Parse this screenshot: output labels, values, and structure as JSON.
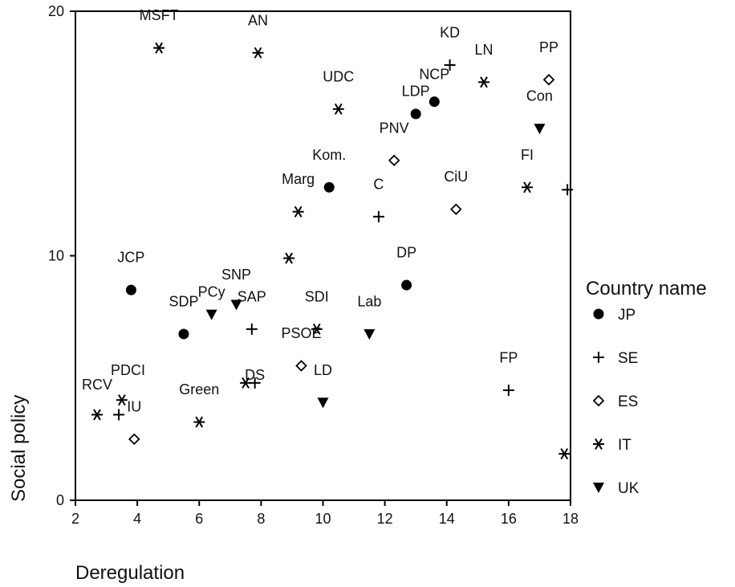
{
  "chart_data": {
    "type": "scatter",
    "xlabel": "Deregulation",
    "ylabel": "Social policy",
    "xlim": [
      2,
      18
    ],
    "ylim": [
      0,
      20
    ],
    "x_ticks": [
      "2",
      "4",
      "6",
      "8",
      "10",
      "12",
      "14",
      "16",
      "18"
    ],
    "y_ticks": [
      "0",
      "10",
      "20"
    ],
    "grid": false,
    "legend": {
      "title": "Country name",
      "placement": "right",
      "entries": [
        {
          "code": "JP",
          "marker": "circle"
        },
        {
          "code": "SE",
          "marker": "plus"
        },
        {
          "code": "ES",
          "marker": "diamond"
        },
        {
          "code": "IT",
          "marker": "asterisk"
        },
        {
          "code": "UK",
          "marker": "triangle-down"
        }
      ]
    },
    "points": [
      {
        "label": "JCP",
        "country": "JP",
        "x": 3.8,
        "y": 8.6,
        "lx": 0,
        "ly": -1.0
      },
      {
        "label": "SDP",
        "country": "JP",
        "x": 5.5,
        "y": 6.8,
        "lx": 0,
        "ly": -1.0
      },
      {
        "label": "Kom.",
        "country": "JP",
        "x": 10.2,
        "y": 12.8,
        "lx": 0,
        "ly": -1.0
      },
      {
        "label": "DP",
        "country": "JP",
        "x": 12.7,
        "y": 8.8,
        "lx": 0,
        "ly": -1.0
      },
      {
        "label": "LDP",
        "country": "JP",
        "x": 13.0,
        "y": 15.8,
        "lx": 0,
        "ly": -0.6
      },
      {
        "label": "NCP",
        "country": "JP",
        "x": 13.6,
        "y": 16.3,
        "lx": 0,
        "ly": -0.8
      },
      {
        "label": "RCV",
        "country": "SE",
        "x": 3.4,
        "y": 3.5,
        "lx": -0.7,
        "ly": -0.9
      },
      {
        "label": "SAP",
        "country": "SE",
        "x": 7.7,
        "y": 7.0,
        "lx": 0,
        "ly": -1.0
      },
      {
        "label": "C",
        "country": "SE",
        "x": 11.8,
        "y": 11.6,
        "lx": 0,
        "ly": -1.0
      },
      {
        "label": "KD",
        "country": "SE",
        "x": 14.1,
        "y": 17.8,
        "lx": 0,
        "ly": -1.0
      },
      {
        "label": "FP",
        "country": "SE",
        "x": 16.0,
        "y": 4.5,
        "lx": 0,
        "ly": -1.0
      },
      {
        "label": "",
        "country": "SE",
        "x": 17.9,
        "y": 12.7,
        "lx": 0,
        "ly": 0
      },
      {
        "label": "DS",
        "country": "SE",
        "x": 7.8,
        "y": 4.8,
        "lx": 0,
        "ly": 0
      },
      {
        "label": "IU",
        "country": "ES",
        "x": 3.9,
        "y": 2.5,
        "lx": 0,
        "ly": -1.0
      },
      {
        "label": "PSOE",
        "country": "ES",
        "x": 9.3,
        "y": 5.5,
        "lx": 0,
        "ly": -1.0
      },
      {
        "label": "PNV",
        "country": "ES",
        "x": 12.3,
        "y": 13.9,
        "lx": 0,
        "ly": -1.0
      },
      {
        "label": "CiU",
        "country": "ES",
        "x": 14.3,
        "y": 11.9,
        "lx": 0,
        "ly": -1.0
      },
      {
        "label": "PP",
        "country": "ES",
        "x": 17.3,
        "y": 17.2,
        "lx": 0,
        "ly": -1.0
      },
      {
        "label": "MSFT",
        "country": "IT",
        "x": 4.7,
        "y": 18.5,
        "lx": 0,
        "ly": -1.0
      },
      {
        "label": "AN",
        "country": "IT",
        "x": 7.9,
        "y": 18.3,
        "lx": 0,
        "ly": -1.0
      },
      {
        "label": "UDC",
        "country": "IT",
        "x": 10.5,
        "y": 16.0,
        "lx": 0,
        "ly": -1.0
      },
      {
        "label": "LN",
        "country": "IT",
        "x": 15.2,
        "y": 17.1,
        "lx": 0,
        "ly": -1.0
      },
      {
        "label": "FI",
        "country": "IT",
        "x": 16.6,
        "y": 12.8,
        "lx": 0,
        "ly": -1.0
      },
      {
        "label": "Marg",
        "country": "IT",
        "x": 9.2,
        "y": 11.8,
        "lx": 0,
        "ly": -1.0
      },
      {
        "label": "",
        "country": "IT",
        "x": 8.9,
        "y": 9.9,
        "lx": 0,
        "ly": 0
      },
      {
        "label": "SDI",
        "country": "IT",
        "x": 9.8,
        "y": 7.0,
        "lx": 0,
        "ly": -1.0
      },
      {
        "label": "",
        "country": "IT",
        "x": 7.5,
        "y": 4.8,
        "lx": 0,
        "ly": 0
      },
      {
        "label": "PDCI",
        "country": "IT",
        "x": 3.5,
        "y": 4.1,
        "lx": 0.2,
        "ly": -0.9
      },
      {
        "label": "",
        "country": "IT",
        "x": 2.7,
        "y": 3.5,
        "lx": 0,
        "ly": 0
      },
      {
        "label": "Green",
        "country": "IT",
        "x": 6.0,
        "y": 3.2,
        "lx": 0,
        "ly": -1.0
      },
      {
        "label": "",
        "country": "IT",
        "x": 17.8,
        "y": 1.9,
        "lx": 0,
        "ly": 0
      },
      {
        "label": "Con",
        "country": "UK",
        "x": 17.0,
        "y": 15.2,
        "lx": 0,
        "ly": -1.0
      },
      {
        "label": "Lab",
        "country": "UK",
        "x": 11.5,
        "y": 6.8,
        "lx": 0,
        "ly": -1.0
      },
      {
        "label": "LD",
        "country": "UK",
        "x": 10.0,
        "y": 4.0,
        "lx": 0,
        "ly": -1.0
      },
      {
        "label": "PCy",
        "country": "UK",
        "x": 6.4,
        "y": 7.6,
        "lx": 0,
        "ly": -0.6
      },
      {
        "label": "SNP",
        "country": "UK",
        "x": 7.2,
        "y": 8.0,
        "lx": 0,
        "ly": -0.9
      }
    ]
  }
}
